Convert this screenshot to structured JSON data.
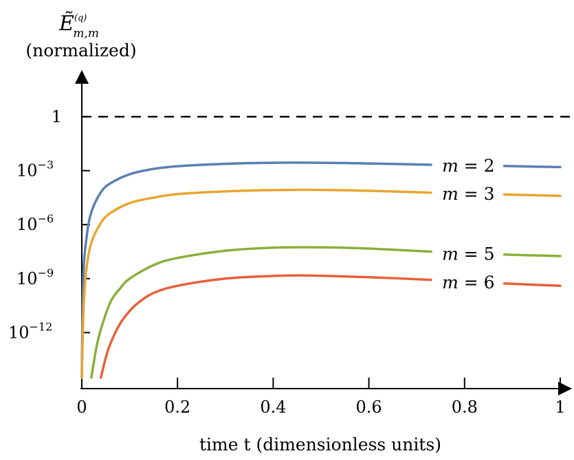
{
  "chart_data": {
    "type": "line",
    "ylabel_symbol": "Ẽ",
    "ylabel_superscript": "(q)",
    "ylabel_subscript": "m,m",
    "ylabel_note": "(normalized)",
    "xlabel": "time t (dimensionless units)",
    "y_scale": "log",
    "xlim": [
      0,
      1
    ],
    "ylim_log10": [
      -14.5,
      1
    ],
    "x_ticks": [
      0,
      0.2,
      0.4,
      0.6,
      0.8,
      1
    ],
    "x_tick_labels": [
      "0",
      "0.2",
      "0.4",
      "0.6",
      "0.8",
      "1"
    ],
    "y_ticks_log10": [
      0,
      -3,
      -6,
      -9,
      -12
    ],
    "y_tick_labels": [
      {
        "base": "1",
        "exp": ""
      },
      {
        "base": "10",
        "exp": "−3"
      },
      {
        "base": "10",
        "exp": "−6"
      },
      {
        "base": "10",
        "exp": "−9"
      },
      {
        "base": "10",
        "exp": "−12"
      }
    ],
    "reference_line": {
      "y_log10": 0,
      "style": "dashed"
    },
    "grid": false,
    "legend": "inline labels at right",
    "series": [
      {
        "name": "m = 2",
        "label_var": "m",
        "label_value": "2",
        "color": "#5b7fb2",
        "x": [
          0,
          0.003,
          0.01,
          0.02,
          0.04,
          0.06,
          0.1,
          0.15,
          0.2,
          0.3,
          0.4,
          0.5,
          0.6,
          0.73,
          0.8,
          1.0
        ],
        "log10_y": [
          -14.5,
          -9.0,
          -6.7,
          -5.3,
          -4.2,
          -3.7,
          -3.2,
          -2.9,
          -2.75,
          -2.62,
          -2.56,
          -2.56,
          -2.6,
          -2.67,
          -2.7,
          -2.8
        ]
      },
      {
        "name": "m = 3",
        "label_var": "m",
        "label_value": "3",
        "color": "#e8a530",
        "x": [
          0,
          0.004,
          0.01,
          0.02,
          0.04,
          0.06,
          0.1,
          0.15,
          0.2,
          0.3,
          0.4,
          0.5,
          0.6,
          0.73,
          0.8,
          1.0
        ],
        "log10_y": [
          -14.5,
          -10.5,
          -8.4,
          -7.0,
          -5.9,
          -5.35,
          -4.8,
          -4.5,
          -4.3,
          -4.15,
          -4.08,
          -4.07,
          -4.12,
          -4.22,
          -4.27,
          -4.4
        ]
      },
      {
        "name": "m = 5",
        "label_var": "m",
        "label_value": "5",
        "color": "#8aaf3a",
        "x": [
          0.02,
          0.03,
          0.04,
          0.06,
          0.08,
          0.1,
          0.15,
          0.2,
          0.3,
          0.4,
          0.5,
          0.6,
          0.73,
          0.8,
          1.0
        ],
        "log10_y": [
          -14.5,
          -12.9,
          -11.8,
          -10.3,
          -9.55,
          -9.0,
          -8.25,
          -7.85,
          -7.45,
          -7.28,
          -7.26,
          -7.33,
          -7.5,
          -7.6,
          -7.75
        ]
      },
      {
        "name": "m = 6",
        "label_var": "m",
        "label_value": "6",
        "color": "#e8603a",
        "x": [
          0.04,
          0.05,
          0.06,
          0.08,
          0.1,
          0.12,
          0.15,
          0.2,
          0.3,
          0.4,
          0.45,
          0.5,
          0.6,
          0.73,
          0.8,
          1.0
        ],
        "log10_y": [
          -14.5,
          -13.4,
          -12.6,
          -11.5,
          -10.8,
          -10.3,
          -9.8,
          -9.4,
          -9.0,
          -8.85,
          -8.82,
          -8.84,
          -8.92,
          -9.07,
          -9.18,
          -9.4
        ]
      }
    ]
  }
}
